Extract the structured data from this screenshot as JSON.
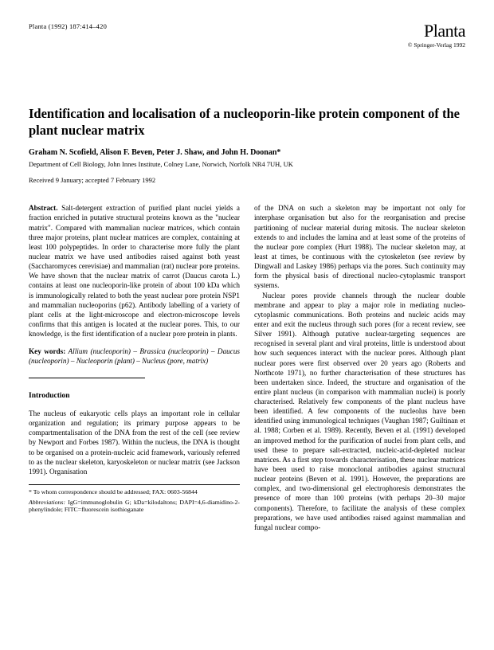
{
  "header": {
    "citation": "Planta (1992) 187:414–420",
    "journal": "Planta",
    "copyright": "© Springer-Verlag 1992"
  },
  "title": "Identification and localisation of a nucleoporin-like protein component of the plant nuclear matrix",
  "authors": "Graham N. Scofield, Alison F. Beven, Peter J. Shaw, and John H. Doonan*",
  "affiliation": "Department of Cell Biology, John Innes Institute, Colney Lane, Norwich, Norfolk NR4 7UH, UK",
  "received": "Received 9 January; accepted 7 February 1992",
  "abstract": {
    "label": "Abstract.",
    "text": " Salt-detergent extraction of purified plant nuclei yields a fraction enriched in putative structural proteins known as the \"nuclear matrix\". Compared with mammalian nuclear matrices, which contain three major proteins, plant nuclear matrices are complex, containing at least 100 polypeptides. In order to characterise more fully the plant nuclear matrix we have used antibodies raised against both yeast (Saccharomyces cerevisiae) and mammalian (rat) nuclear pore proteins. We have shown that the nuclear matrix of carrot (Daucus carota L.) contains at least one nucleoporin-like protein of about 100 kDa which is immunologically related to both the yeast nuclear pore protein NSP1 and mammalian nucleoporins (p62). Antibody labelling of a variety of plant cells at the light-microscope and electron-microscope levels confirms that this antigen is located at the nuclear pores. This, to our knowledge, is the first identification of a nuclear pore protein in plants."
  },
  "keywords": {
    "label": "Key words:",
    "text": " Allium (nucleoporin) – Brassica (nucleoporin) – Daucus (nucleoporin) – Nucleoporin (plant) – Nucleus (pore, matrix)"
  },
  "introduction": {
    "heading": "Introduction",
    "p1": "The nucleus of eukaryotic cells plays an important role in cellular organization and regulation; its primary purpose appears to be compartmentalisation of the DNA from the rest of the cell (see review by Newport and Forbes 1987). Within the nucleus, the DNA is thought to be organised on a protein-nucleic acid framework, variously referred to as the nuclear skeleton, karyoskeleton or nuclear matrix (see Jackson 1991). Organisation"
  },
  "footnotes": {
    "f1": "* To whom correspondence should be addressed; FAX: 0603-56844",
    "f2_label": "Abbreviations:",
    "f2_text": " IgG=immunoglobulin G; kDa=kilodaltons; DAPI=4,6-diamidino-2-phenylindole; FITC=fluorescein isothioganate"
  },
  "col2": {
    "p1": "of the DNA on such a skeleton may be important not only for interphase organisation but also for the reorganisation and precise partitioning of nuclear material during mitosis. The nuclear skeleton extends to and includes the lamina and at least some of the proteins of the nuclear pore complex (Hurt 1988). The nuclear skeleton may, at least at times, be continuous with the cytoskeleton (see review by Dingwall and Laskey 1986) perhaps via the pores. Such continuity may form the physical basis of directional nucleo-cytoplasmic transport systems.",
    "p2": "Nuclear pores provide channels through the nuclear double membrane and appear to play a major role in mediating nucleo-cytoplasmic communications. Both proteins and nucleic acids may enter and exit the nucleus through such pores (for a recent review, see Silver 1991). Although putative nuclear-targeting sequences are recognised in several plant and viral proteins, little is understood about how such sequences interact with the nuclear pores. Although plant nuclear pores were first observed over 20 years ago (Roberts and Northcote 1971), no further characterisation of these structures has been undertaken since. Indeed, the structure and organisation of the entire plant nucleus (in comparison with mammalian nuclei) is poorly characterised. Relatively few components of the plant nucleus have been identified. A few components of the nucleolus have been identified using immunological techniques (Vaughan 1987; Guiltinan et al. 1988; Corben et al. 1989). Recently, Beven et al. (1991) developed an improved method for the purification of nuclei from plant cells, and used these to prepare salt-extracted, nucleic-acid-depleted nuclear matrices. As a first step towards characterisation, these nuclear matrices have been used to raise monoclonal antibodies against structural nuclear proteins (Beven et al. 1991). However, the preparations are complex, and two-dimensional gel electrophoresis demonstrates the presence of more than 100 proteins (with perhaps 20–30 major components). Therefore, to facilitate the analysis of these complex preparations, we have used antibodies raised against mammalian and fungal nuclear compo-"
  }
}
